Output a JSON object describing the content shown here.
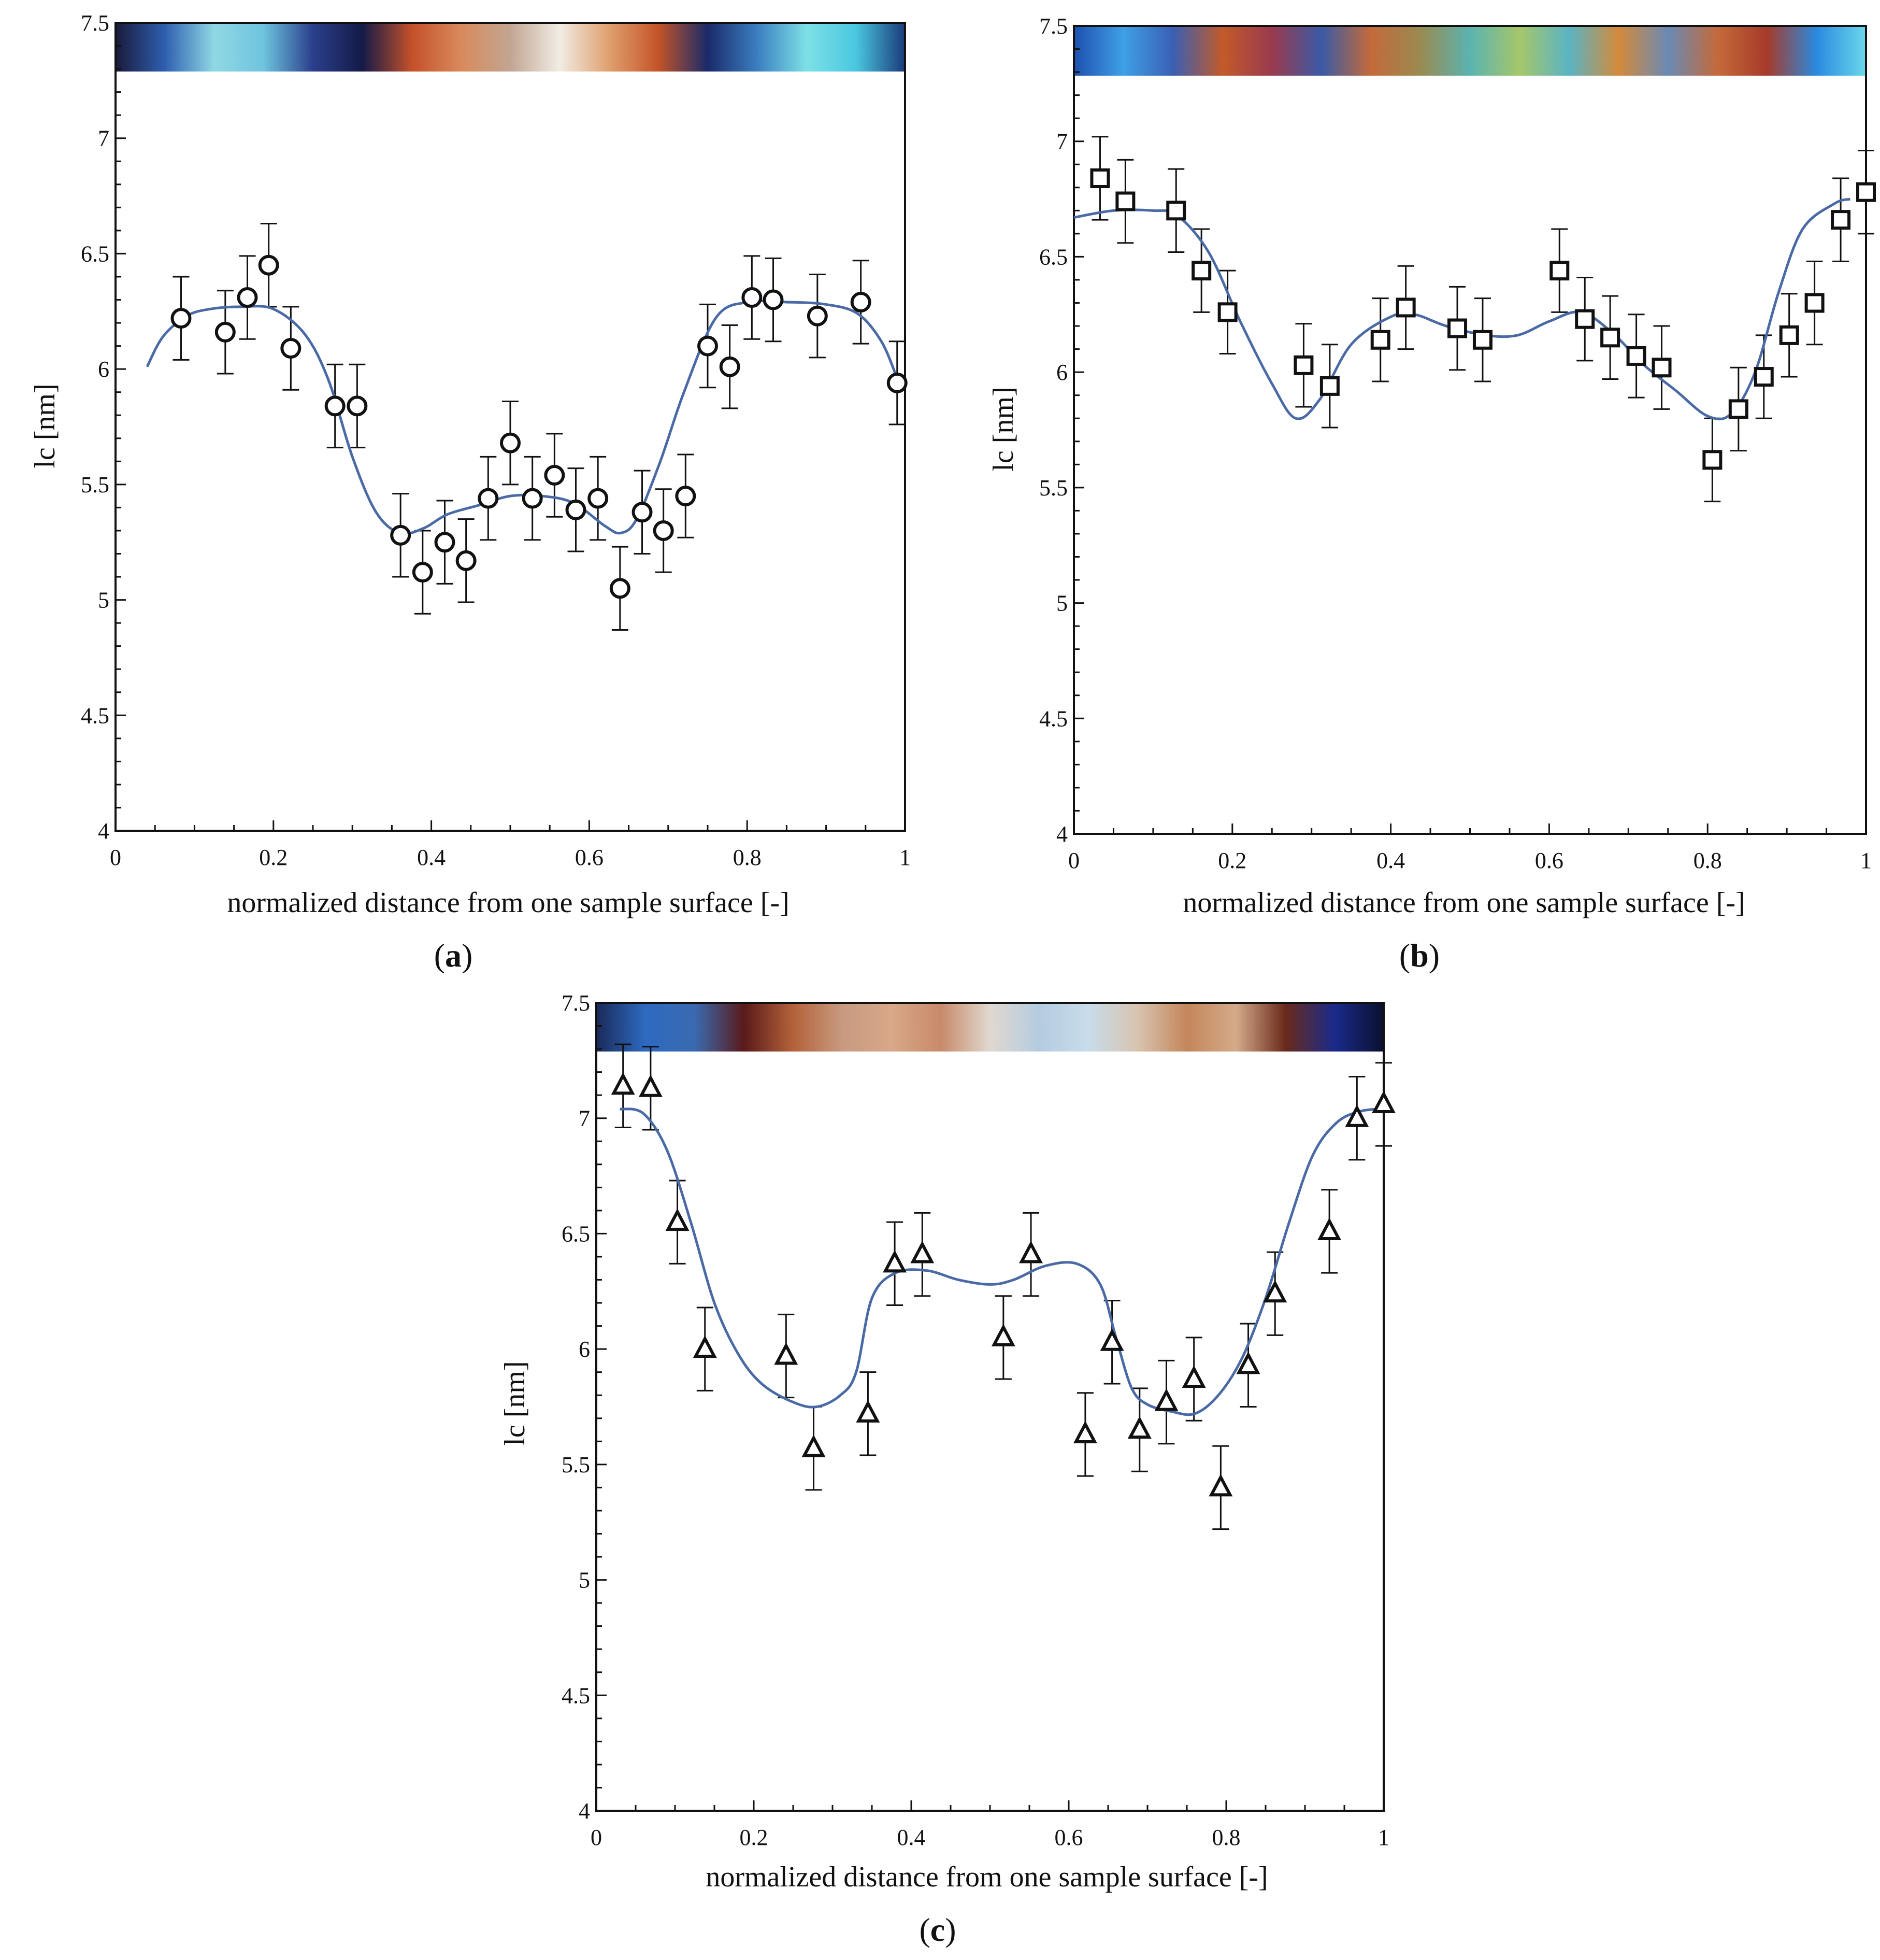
{
  "colors": {
    "curve": "#4a6aa6",
    "marker": "#111111",
    "axis": "#111111"
  },
  "charts": [
    {
      "chart_data": {
        "type": "scatter",
        "panel_label": "a",
        "xlabel": "normalized distance from one sample surface [-]",
        "ylabel": "lc [nm]",
        "xlim": [
          0,
          1
        ],
        "ylim": [
          4,
          7.5
        ],
        "x_ticks": [
          "0",
          "0.2",
          "0.4",
          "0.6",
          "0.8",
          "1"
        ],
        "y_ticks": [
          "4",
          "4.5",
          "5",
          "5.5",
          "6",
          "6.5",
          "7",
          "7.5"
        ],
        "marker": "circle",
        "error_bar": 0.18,
        "points": [
          [
            0.083,
            6.22
          ],
          [
            0.139,
            6.16
          ],
          [
            0.167,
            6.31
          ],
          [
            0.194,
            6.45
          ],
          [
            0.222,
            6.09
          ],
          [
            0.278,
            5.84
          ],
          [
            0.306,
            5.84
          ],
          [
            0.361,
            5.28
          ],
          [
            0.389,
            5.12
          ],
          [
            0.417,
            5.25
          ],
          [
            0.444,
            5.17
          ],
          [
            0.472,
            5.44
          ],
          [
            0.5,
            5.68
          ],
          [
            0.528,
            5.44
          ],
          [
            0.556,
            5.54
          ],
          [
            0.583,
            5.39
          ],
          [
            0.611,
            5.44
          ],
          [
            0.639,
            5.05
          ],
          [
            0.667,
            5.38
          ],
          [
            0.694,
            5.3
          ],
          [
            0.722,
            5.45
          ],
          [
            0.75,
            6.1
          ],
          [
            0.778,
            6.01
          ],
          [
            0.806,
            6.31
          ],
          [
            0.833,
            6.3
          ],
          [
            0.889,
            6.23
          ],
          [
            0.944,
            6.29
          ],
          [
            0.99,
            5.94
          ]
        ],
        "fit_curve": [
          [
            0.04,
            6.01
          ],
          [
            0.06,
            6.14
          ],
          [
            0.09,
            6.23
          ],
          [
            0.12,
            6.26
          ],
          [
            0.16,
            6.27
          ],
          [
            0.2,
            6.26
          ],
          [
            0.24,
            6.15
          ],
          [
            0.27,
            5.95
          ],
          [
            0.3,
            5.62
          ],
          [
            0.33,
            5.38
          ],
          [
            0.36,
            5.29
          ],
          [
            0.39,
            5.31
          ],
          [
            0.42,
            5.37
          ],
          [
            0.46,
            5.41
          ],
          [
            0.5,
            5.45
          ],
          [
            0.54,
            5.45
          ],
          [
            0.58,
            5.42
          ],
          [
            0.62,
            5.32
          ],
          [
            0.64,
            5.29
          ],
          [
            0.66,
            5.35
          ],
          [
            0.69,
            5.6
          ],
          [
            0.72,
            5.9
          ],
          [
            0.76,
            6.22
          ],
          [
            0.8,
            6.29
          ],
          [
            0.85,
            6.29
          ],
          [
            0.9,
            6.28
          ],
          [
            0.94,
            6.24
          ],
          [
            0.97,
            6.12
          ],
          [
            0.99,
            5.96
          ]
        ],
        "colorbar": [
          "#1a1a3a",
          "#2e5fb0",
          "#8fd8e4",
          "#6ec4de",
          "#2a3f8c",
          "#141a48",
          "#c4502a",
          "#d98a5c",
          "#c2a592",
          "#f1ece4",
          "#e0a06e",
          "#c45428",
          "#1a2a6a",
          "#3a7ec0",
          "#7de0e6",
          "#4ac8e0",
          "#1a3a7a"
        ]
      }
    },
    {
      "chart_data": {
        "type": "scatter",
        "panel_label": "b",
        "xlabel": "normalized distance from one sample surface [-]",
        "ylabel": "lc [nm]",
        "xlim": [
          0,
          1
        ],
        "ylim": [
          4,
          7.5
        ],
        "x_ticks": [
          "0",
          "0.2",
          "0.4",
          "0.6",
          "0.8",
          "1"
        ],
        "y_ticks": [
          "4",
          "4.5",
          "5",
          "5.5",
          "6",
          "6.5",
          "7",
          "7.5"
        ],
        "marker": "square",
        "error_bar": 0.18,
        "points": [
          [
            0.033,
            6.84
          ],
          [
            0.065,
            6.74
          ],
          [
            0.129,
            6.7
          ],
          [
            0.161,
            6.44
          ],
          [
            0.194,
            6.26
          ],
          [
            0.29,
            6.03
          ],
          [
            0.323,
            5.94
          ],
          [
            0.387,
            6.14
          ],
          [
            0.419,
            6.28
          ],
          [
            0.484,
            6.19
          ],
          [
            0.516,
            6.14
          ],
          [
            0.613,
            6.44
          ],
          [
            0.645,
            6.23
          ],
          [
            0.677,
            6.15
          ],
          [
            0.71,
            6.07
          ],
          [
            0.742,
            6.02
          ],
          [
            0.806,
            5.62
          ],
          [
            0.839,
            5.84
          ],
          [
            0.871,
            5.98
          ],
          [
            0.903,
            6.16
          ],
          [
            0.935,
            6.3
          ],
          [
            0.968,
            6.66
          ],
          [
            1.0,
            6.78
          ]
        ],
        "fit_curve": [
          [
            0.0,
            6.67
          ],
          [
            0.05,
            6.7
          ],
          [
            0.1,
            6.7
          ],
          [
            0.13,
            6.68
          ],
          [
            0.17,
            6.52
          ],
          [
            0.21,
            6.22
          ],
          [
            0.25,
            5.95
          ],
          [
            0.28,
            5.8
          ],
          [
            0.31,
            5.88
          ],
          [
            0.35,
            6.12
          ],
          [
            0.4,
            6.24
          ],
          [
            0.43,
            6.25
          ],
          [
            0.47,
            6.2
          ],
          [
            0.52,
            6.16
          ],
          [
            0.56,
            6.16
          ],
          [
            0.6,
            6.22
          ],
          [
            0.64,
            6.26
          ],
          [
            0.68,
            6.17
          ],
          [
            0.72,
            6.03
          ],
          [
            0.76,
            5.92
          ],
          [
            0.8,
            5.81
          ],
          [
            0.83,
            5.82
          ],
          [
            0.86,
            6.0
          ],
          [
            0.89,
            6.35
          ],
          [
            0.92,
            6.62
          ],
          [
            0.96,
            6.73
          ],
          [
            0.98,
            6.75
          ]
        ],
        "colorbar": [
          "#1e4fb0",
          "#3ea0e6",
          "#3a5fb4",
          "#c25a2a",
          "#9a3a4e",
          "#3a5aa6",
          "#c46a3a",
          "#9a8a52",
          "#5ab4b0",
          "#a6c66a",
          "#5ab4c4",
          "#d48a3a",
          "#6a8ab4",
          "#c46a3a",
          "#a63a2a",
          "#2a8ae0",
          "#6ad8ec"
        ]
      }
    },
    {
      "chart_data": {
        "type": "scatter",
        "panel_label": "c",
        "xlabel": "normalized distance from one sample surface [-]",
        "ylabel": "lc [nm]",
        "xlim": [
          0,
          1
        ],
        "ylim": [
          4,
          7.5
        ],
        "x_ticks": [
          "0",
          "0.2",
          "0.4",
          "0.6",
          "0.8",
          "1"
        ],
        "y_ticks": [
          "4",
          "4.5",
          "5",
          "5.5",
          "6",
          "6.5",
          "7",
          "7.5"
        ],
        "marker": "triangle",
        "error_bar": 0.18,
        "points": [
          [
            0.034,
            7.14
          ],
          [
            0.069,
            7.13
          ],
          [
            0.103,
            6.55
          ],
          [
            0.138,
            6.0
          ],
          [
            0.241,
            5.97
          ],
          [
            0.276,
            5.57
          ],
          [
            0.345,
            5.72
          ],
          [
            0.379,
            6.37
          ],
          [
            0.414,
            6.41
          ],
          [
            0.517,
            6.05
          ],
          [
            0.552,
            6.41
          ],
          [
            0.621,
            5.63
          ],
          [
            0.655,
            6.03
          ],
          [
            0.69,
            5.65
          ],
          [
            0.724,
            5.77
          ],
          [
            0.759,
            5.87
          ],
          [
            0.793,
            5.4
          ],
          [
            0.828,
            5.93
          ],
          [
            0.862,
            6.24
          ],
          [
            0.931,
            6.51
          ],
          [
            0.966,
            7.0
          ],
          [
            1.0,
            7.06
          ]
        ],
        "fit_curve": [
          [
            0.03,
            7.04
          ],
          [
            0.06,
            7.02
          ],
          [
            0.09,
            6.86
          ],
          [
            0.12,
            6.55
          ],
          [
            0.15,
            6.2
          ],
          [
            0.18,
            5.98
          ],
          [
            0.21,
            5.85
          ],
          [
            0.25,
            5.77
          ],
          [
            0.28,
            5.75
          ],
          [
            0.31,
            5.8
          ],
          [
            0.33,
            5.9
          ],
          [
            0.35,
            6.22
          ],
          [
            0.38,
            6.33
          ],
          [
            0.42,
            6.34
          ],
          [
            0.46,
            6.3
          ],
          [
            0.5,
            6.28
          ],
          [
            0.53,
            6.3
          ],
          [
            0.57,
            6.36
          ],
          [
            0.61,
            6.37
          ],
          [
            0.64,
            6.28
          ],
          [
            0.66,
            6.05
          ],
          [
            0.68,
            5.83
          ],
          [
            0.7,
            5.76
          ],
          [
            0.73,
            5.73
          ],
          [
            0.76,
            5.72
          ],
          [
            0.79,
            5.8
          ],
          [
            0.82,
            5.96
          ],
          [
            0.85,
            6.22
          ],
          [
            0.88,
            6.55
          ],
          [
            0.91,
            6.84
          ],
          [
            0.94,
            6.98
          ],
          [
            0.97,
            7.03
          ],
          [
            1.0,
            7.04
          ]
        ],
        "colorbar": [
          "#1a2a5a",
          "#2e6ac0",
          "#3a6ab0",
          "#5a1a1a",
          "#b4623a",
          "#c89a80",
          "#d8a888",
          "#c88a6a",
          "#e0d8d0",
          "#b4cce0",
          "#c8dcea",
          "#d8c4b0",
          "#c4865a",
          "#d4aa8a",
          "#6a2a1a",
          "#1a2a8a",
          "#0a1030"
        ]
      }
    }
  ]
}
